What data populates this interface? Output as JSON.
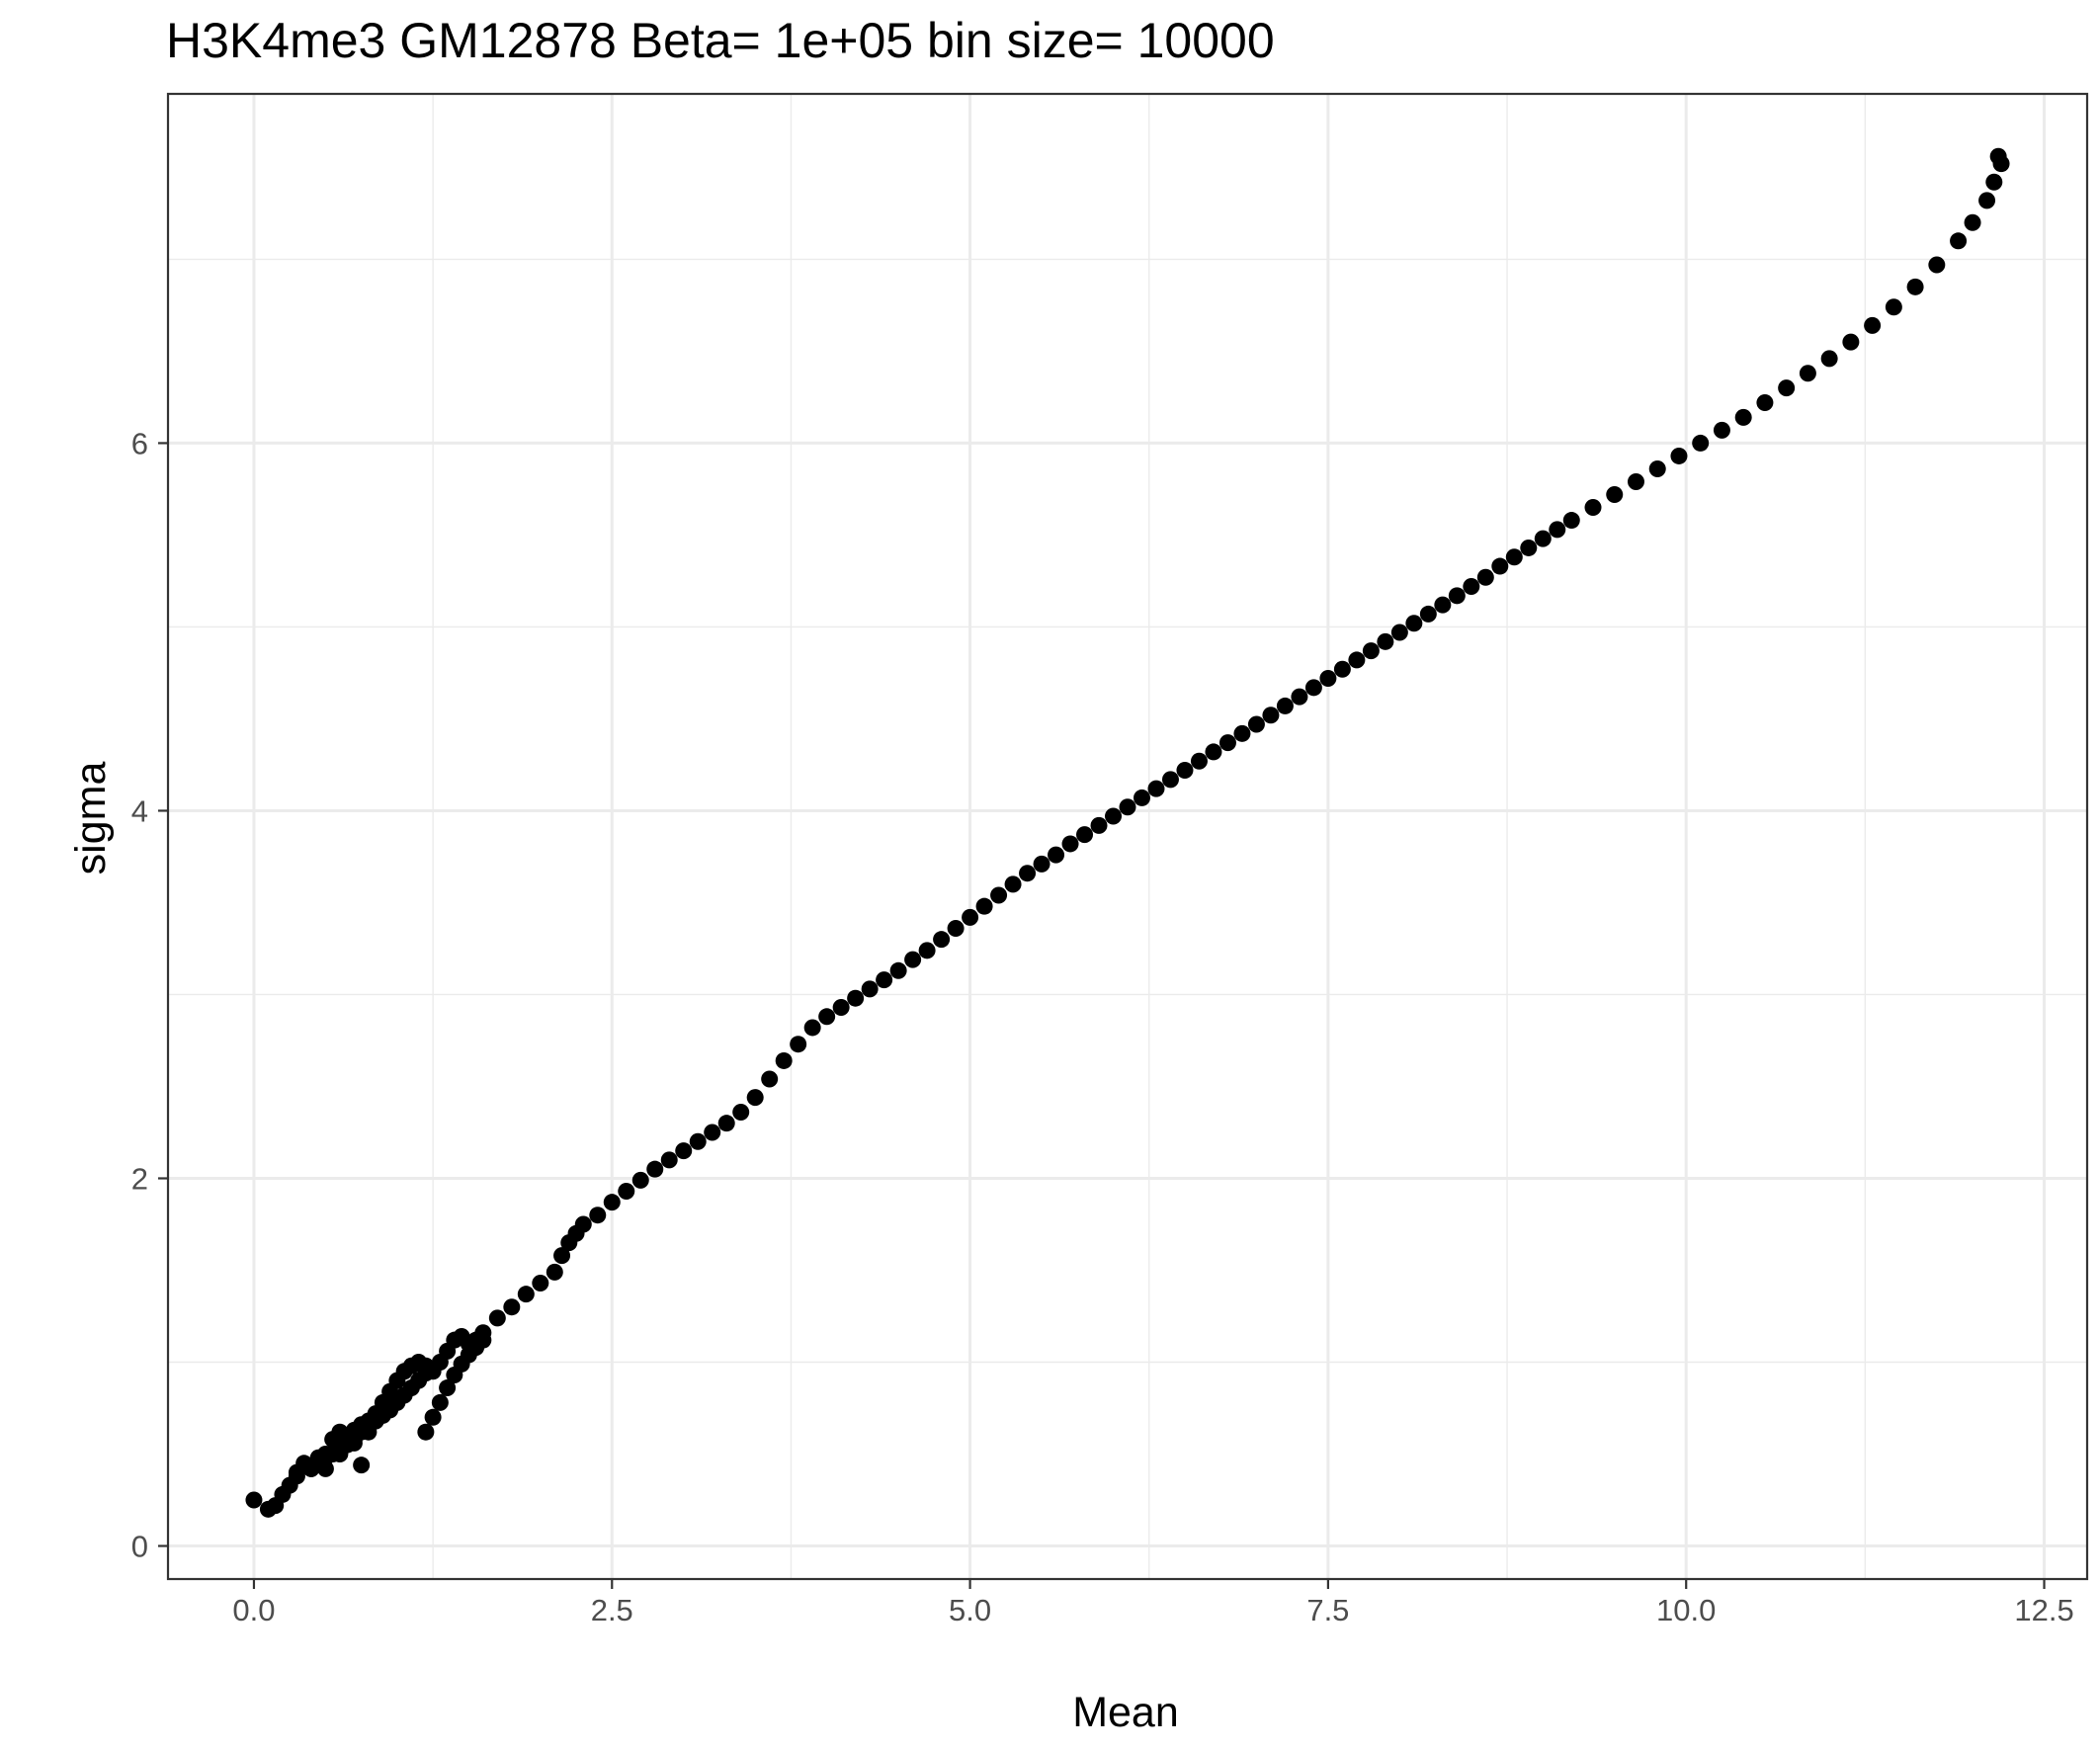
{
  "chart_data": {
    "type": "scatter",
    "title": "H3K4me3 GM12878  Beta=  1e+05  bin size=  10000",
    "xlabel": "Mean",
    "ylabel": "sigma",
    "xlim": [
      -0.6,
      12.8
    ],
    "ylim": [
      -0.18,
      7.9
    ],
    "xticks": [
      0.0,
      2.5,
      5.0,
      7.5,
      10.0,
      12.5
    ],
    "xtick_labels": [
      "0.0",
      "2.5",
      "5.0",
      "7.5",
      "10.0",
      "12.5"
    ],
    "yticks": [
      0,
      2,
      4,
      6
    ],
    "ytick_labels": [
      "0",
      "2",
      "4",
      "6"
    ],
    "x_minor_gridlines": [
      1.25,
      3.75,
      6.25,
      8.75,
      11.25
    ],
    "y_minor_gridlines": [
      1,
      3,
      5,
      7
    ],
    "grid": true,
    "legend": "none",
    "colors": {
      "points": "#000000",
      "grid": "#ebebeb",
      "panel_border": "#333333",
      "tick_text": "#4d4d4d"
    },
    "series": [
      {
        "x": [
          0.0,
          0.1,
          0.15,
          0.2,
          0.25,
          0.3,
          0.35,
          0.4,
          0.45,
          0.5,
          0.55,
          0.6,
          0.65,
          0.7,
          0.75,
          0.8,
          0.85,
          0.9,
          0.95,
          1.0,
          1.05,
          1.1,
          1.15,
          1.2,
          1.25,
          1.3,
          1.35,
          1.4,
          1.45,
          1.5,
          1.55,
          1.6,
          1.7,
          1.8,
          1.9,
          2.0,
          2.1,
          2.15,
          2.2,
          2.25,
          2.3,
          2.4,
          2.5,
          2.6,
          2.7,
          2.8,
          2.9,
          3.0,
          3.1,
          3.2,
          3.3,
          3.4,
          3.5,
          3.6,
          3.7,
          3.8,
          3.9,
          4.0,
          4.1,
          4.2,
          4.3,
          4.4,
          4.5,
          4.6,
          4.7,
          4.8,
          4.9,
          5.0,
          5.1,
          5.2,
          5.3,
          5.4,
          5.5,
          5.6,
          5.7,
          5.8,
          5.9,
          6.0,
          6.1,
          6.2,
          6.3,
          6.4,
          6.5,
          6.6,
          6.7,
          6.8,
          6.9,
          7.0,
          7.1,
          7.2,
          7.3,
          7.4,
          7.5,
          7.6,
          7.7,
          7.8,
          7.9,
          8.0,
          8.1,
          8.2,
          8.3,
          8.4,
          8.5,
          8.6,
          8.7,
          8.8,
          8.9,
          9.0,
          9.1,
          9.2,
          9.35,
          9.5,
          9.65,
          9.8,
          9.95,
          10.1,
          10.25,
          10.4,
          10.55,
          10.7,
          10.85,
          11.0,
          11.15,
          11.3,
          11.45,
          11.6,
          11.75,
          11.9,
          12.0,
          12.1,
          12.15,
          12.2,
          12.18,
          0.3,
          0.4,
          0.45,
          0.5,
          0.55,
          0.6,
          0.65,
          0.7,
          0.75,
          0.8,
          0.85,
          0.9,
          0.95,
          1.0,
          1.05,
          1.1,
          1.15,
          1.2,
          0.5,
          0.6,
          0.7,
          0.75,
          0.8,
          0.85,
          0.9,
          1.2,
          1.25,
          1.3,
          1.35,
          1.4,
          1.45,
          1.5,
          1.55,
          1.6
        ],
        "y": [
          0.25,
          0.2,
          0.22,
          0.28,
          0.33,
          0.4,
          0.45,
          0.42,
          0.48,
          0.5,
          0.58,
          0.62,
          0.6,
          0.63,
          0.66,
          0.68,
          0.72,
          0.78,
          0.84,
          0.9,
          0.95,
          0.98,
          1.0,
          0.98,
          0.95,
          1.0,
          1.06,
          1.12,
          1.14,
          1.1,
          1.12,
          1.16,
          1.24,
          1.3,
          1.37,
          1.43,
          1.49,
          1.58,
          1.65,
          1.7,
          1.75,
          1.8,
          1.87,
          1.93,
          1.99,
          2.05,
          2.1,
          2.15,
          2.2,
          2.25,
          2.3,
          2.36,
          2.44,
          2.54,
          2.64,
          2.73,
          2.82,
          2.88,
          2.93,
          2.98,
          3.03,
          3.08,
          3.13,
          3.19,
          3.24,
          3.3,
          3.36,
          3.42,
          3.48,
          3.54,
          3.6,
          3.66,
          3.71,
          3.76,
          3.82,
          3.87,
          3.92,
          3.97,
          4.02,
          4.07,
          4.12,
          4.17,
          4.22,
          4.27,
          4.32,
          4.37,
          4.42,
          4.47,
          4.52,
          4.57,
          4.62,
          4.67,
          4.72,
          4.77,
          4.82,
          4.87,
          4.92,
          4.97,
          5.02,
          5.07,
          5.12,
          5.17,
          5.22,
          5.27,
          5.33,
          5.38,
          5.43,
          5.48,
          5.53,
          5.58,
          5.65,
          5.72,
          5.79,
          5.86,
          5.93,
          6.0,
          6.07,
          6.14,
          6.22,
          6.3,
          6.38,
          6.46,
          6.55,
          6.64,
          6.74,
          6.85,
          6.97,
          7.1,
          7.2,
          7.32,
          7.42,
          7.52,
          7.56,
          0.38,
          0.42,
          0.45,
          0.48,
          0.5,
          0.52,
          0.55,
          0.58,
          0.62,
          0.65,
          0.68,
          0.71,
          0.74,
          0.78,
          0.82,
          0.86,
          0.9,
          0.94,
          0.42,
          0.5,
          0.56,
          0.44,
          0.62,
          0.68,
          0.72,
          0.62,
          0.7,
          0.78,
          0.86,
          0.93,
          0.99,
          1.04,
          1.08,
          1.12
        ]
      }
    ]
  }
}
